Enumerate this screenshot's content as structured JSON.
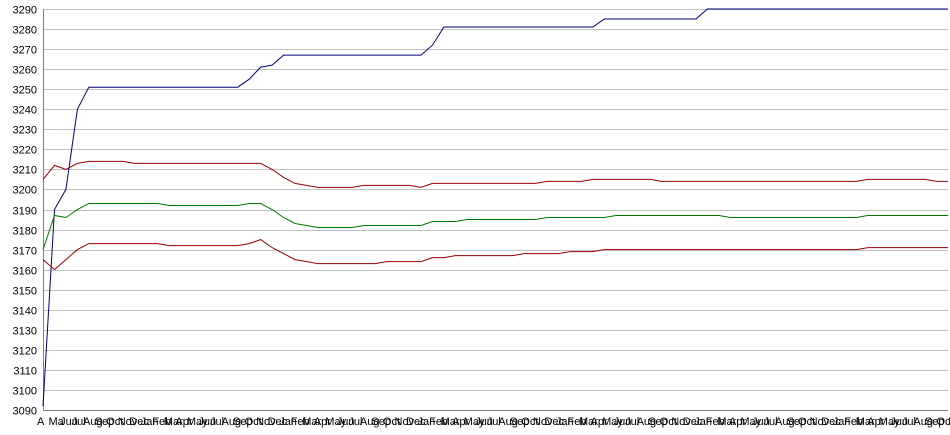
{
  "chart_data": {
    "type": "line",
    "title": "",
    "xlabel": "",
    "ylabel": "",
    "ylim": [
      3090,
      3290
    ],
    "yticks": [
      3090,
      3100,
      3110,
      3120,
      3130,
      3140,
      3150,
      3160,
      3170,
      3180,
      3190,
      3200,
      3210,
      3220,
      3230,
      3240,
      3250,
      3260,
      3270,
      3280,
      3290
    ],
    "grid": "horizontal",
    "legend": "none",
    "colors": {
      "grid": "#c0c0c0",
      "axis": "#808080",
      "text": "#000000"
    },
    "x_tick_labels": [
      "A",
      "Ma",
      "Jun",
      "Jul",
      "Aug",
      "Sep",
      "Oct",
      "Nov",
      "Dec",
      "Jan",
      "Feb",
      "Mar",
      "Apr",
      "May",
      "Jun",
      "Jul",
      "Aug",
      "Sep",
      "Oct",
      "Nov",
      "Dec",
      "Jan",
      "Feb",
      "Mar",
      "Apr",
      "May",
      "Jun",
      "Jul",
      "Aug",
      "Sep",
      "Oct",
      "Nov",
      "Dec",
      "Jan",
      "Feb",
      "Mar",
      "Apr",
      "May",
      "Jun",
      "Jul",
      "Aug",
      "Sep",
      "Oct",
      "Nov",
      "Dec",
      "Jan",
      "Feb",
      "Mar",
      "Apr",
      "May",
      "Jun",
      "Jul",
      "Aug",
      "Sep",
      "Oct",
      "Nov",
      "Dec",
      "Jan",
      "Feb",
      "Mar",
      "Apr",
      "May",
      "Jun",
      "Jul",
      "Aug",
      "Sep",
      "Oct",
      "Nov",
      "Dec",
      "Jan",
      "Feb",
      "Mar",
      "Apr",
      "May",
      "Jun",
      "Jul",
      "Aug",
      "Sep",
      "Oct",
      "No"
    ],
    "x": [
      0,
      1,
      2,
      3,
      4,
      5,
      6,
      7,
      8,
      9,
      10,
      11,
      12,
      13,
      14,
      15,
      16,
      17,
      18,
      19,
      20,
      21,
      22,
      23,
      24,
      25,
      26,
      27,
      28,
      29,
      30,
      31,
      32,
      33,
      34,
      35,
      36,
      37,
      38,
      39,
      40,
      41,
      42,
      43,
      44,
      45,
      46,
      47,
      48,
      49,
      50,
      51,
      52,
      53,
      54,
      55,
      56,
      57,
      58,
      59,
      60,
      61,
      62,
      63,
      64,
      65,
      66,
      67,
      68,
      69,
      70,
      71,
      72,
      73,
      74,
      75,
      76,
      77,
      78,
      79
    ],
    "series": [
      {
        "color": "#000080",
        "values": [
          3092,
          3190,
          3200,
          3240,
          3251,
          3251,
          3251,
          3251,
          3251,
          3251,
          3251,
          3251,
          3251,
          3251,
          3251,
          3251,
          3251,
          3251,
          3255,
          3261,
          3262,
          3267,
          3267,
          3267,
          3267,
          3267,
          3267,
          3267,
          3267,
          3267,
          3267,
          3267,
          3267,
          3267,
          3272,
          3281,
          3281,
          3281,
          3281,
          3281,
          3281,
          3281,
          3281,
          3281,
          3281,
          3281,
          3281,
          3281,
          3281,
          3285,
          3285,
          3285,
          3285,
          3285,
          3285,
          3285,
          3285,
          3285,
          3290,
          3290,
          3290,
          3290,
          3290,
          3290,
          3290,
          3290,
          3290,
          3290,
          3290,
          3290,
          3290,
          3290,
          3290,
          3290,
          3290,
          3290,
          3290,
          3290,
          3290,
          3290
        ]
      },
      {
        "color": "#990000",
        "values": [
          3205,
          3212,
          3210,
          3213,
          3214,
          3214,
          3214,
          3214,
          3213,
          3213,
          3213,
          3213,
          3213,
          3213,
          3213,
          3213,
          3213,
          3213,
          3213,
          3213,
          3210,
          3206,
          3203,
          3202,
          3201,
          3201,
          3201,
          3201,
          3202,
          3202,
          3202,
          3202,
          3202,
          3201,
          3203,
          3203,
          3203,
          3203,
          3203,
          3203,
          3203,
          3203,
          3203,
          3203,
          3204,
          3204,
          3204,
          3204,
          3205,
          3205,
          3205,
          3205,
          3205,
          3205,
          3204,
          3204,
          3204,
          3204,
          3204,
          3204,
          3204,
          3204,
          3204,
          3204,
          3204,
          3204,
          3204,
          3204,
          3204,
          3204,
          3204,
          3204,
          3205,
          3205,
          3205,
          3205,
          3205,
          3205,
          3204,
          3204
        ]
      },
      {
        "color": "#007700",
        "values": [
          3170,
          3187,
          3186,
          3190,
          3193,
          3193,
          3193,
          3193,
          3193,
          3193,
          3193,
          3192,
          3192,
          3192,
          3192,
          3192,
          3192,
          3192,
          3193,
          3193,
          3190,
          3186,
          3183,
          3182,
          3181,
          3181,
          3181,
          3181,
          3182,
          3182,
          3182,
          3182,
          3182,
          3182,
          3184,
          3184,
          3184,
          3185,
          3185,
          3185,
          3185,
          3185,
          3185,
          3185,
          3186,
          3186,
          3186,
          3186,
          3186,
          3186,
          3187,
          3187,
          3187,
          3187,
          3187,
          3187,
          3187,
          3187,
          3187,
          3187,
          3186,
          3186,
          3186,
          3186,
          3186,
          3186,
          3186,
          3186,
          3186,
          3186,
          3186,
          3186,
          3187,
          3187,
          3187,
          3187,
          3187,
          3187,
          3187,
          3187
        ]
      },
      {
        "color": "#990000",
        "values": [
          3165,
          3160,
          3165,
          3170,
          3173,
          3173,
          3173,
          3173,
          3173,
          3173,
          3173,
          3172,
          3172,
          3172,
          3172,
          3172,
          3172,
          3172,
          3173,
          3175,
          3171,
          3168,
          3165,
          3164,
          3163,
          3163,
          3163,
          3163,
          3163,
          3163,
          3164,
          3164,
          3164,
          3164,
          3166,
          3166,
          3167,
          3167,
          3167,
          3167,
          3167,
          3167,
          3168,
          3168,
          3168,
          3168,
          3169,
          3169,
          3169,
          3170,
          3170,
          3170,
          3170,
          3170,
          3170,
          3170,
          3170,
          3170,
          3170,
          3170,
          3170,
          3170,
          3170,
          3170,
          3170,
          3170,
          3170,
          3170,
          3170,
          3170,
          3170,
          3170,
          3171,
          3171,
          3171,
          3171,
          3171,
          3171,
          3171,
          3171
        ]
      }
    ]
  }
}
